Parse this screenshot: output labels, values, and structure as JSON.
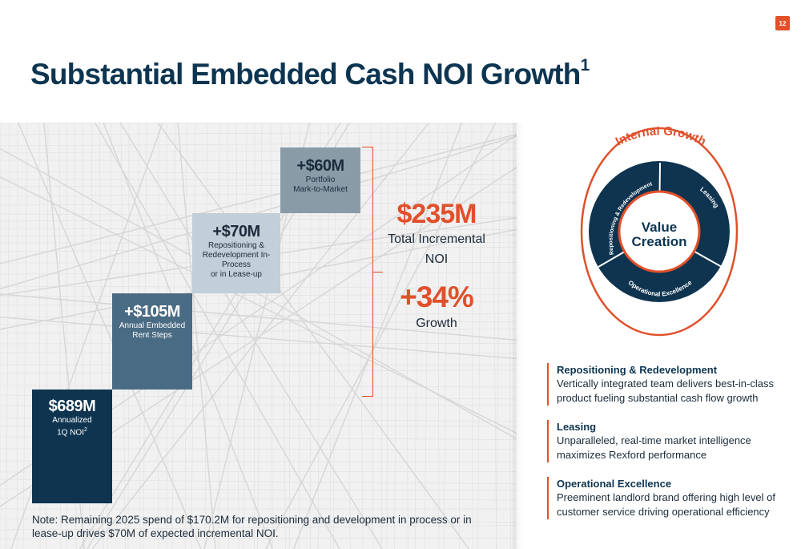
{
  "page_number": "12",
  "title": "Substantial Embedded Cash NOI Growth",
  "title_superscript": "1",
  "chart_data": {
    "type": "bar",
    "subtype": "waterfall",
    "categories": [
      "Annualized 1Q NOI",
      "Annual Embedded Rent Steps",
      "Repositioning & Redevelopment In-Process or in Lease-up",
      "Portfolio Mark-to-Market"
    ],
    "values": [
      689,
      105,
      70,
      60
    ],
    "value_labels": [
      "$689M",
      "+$105M",
      "+$70M",
      "+$60M"
    ],
    "label_lines": [
      [
        "Annualized",
        "1Q NOI"
      ],
      [
        "Annual Embedded",
        "Rent Steps"
      ],
      [
        "Repositioning &",
        "Redevelopment In-Process",
        "or in Lease-up"
      ],
      [
        "Portfolio",
        "Mark-to-Market"
      ]
    ],
    "label_superscripts": [
      "2",
      "",
      "",
      ""
    ],
    "colors": [
      "#0e3450",
      "#4a6b84",
      "#c2ced8",
      "#8a9ba8"
    ],
    "text_colors": [
      "#ffffff",
      "#ffffff",
      "#1c2b3a",
      "#1c2b3a"
    ],
    "total": {
      "value": "$235M",
      "label_line1": "Total Incremental",
      "label_line2": "NOI"
    },
    "growth": {
      "value": "+34%",
      "label": "Growth"
    },
    "xlabel": "",
    "ylabel": ""
  },
  "note": "Note: Remaining 2025 spend of $170.2M for repositioning and development in process or in lease-up drives $70M of expected incremental NOI.",
  "wheel": {
    "outer_label": "Internal Growth",
    "center_line1": "Value",
    "center_line2": "Creation",
    "segments": [
      "Repositioning & Redevelopment",
      "Leasing",
      "Operational Excellence"
    ],
    "fill_color": "#0e3450",
    "accent_color": "#e0502a"
  },
  "items": [
    {
      "heading": "Repositioning & Redevelopment",
      "desc_line1": "Vertically integrated team delivers best-in-class",
      "desc_line2": "product fueling substantial cash flow growth"
    },
    {
      "heading": "Leasing",
      "desc_line1": "Unparalleled, real-time market intelligence",
      "desc_line2": "maximizes Rexford performance"
    },
    {
      "heading": "Operational Excellence",
      "desc_line1": "Preeminent landlord brand offering high level of",
      "desc_line2": "customer service driving operational efficiency"
    }
  ]
}
